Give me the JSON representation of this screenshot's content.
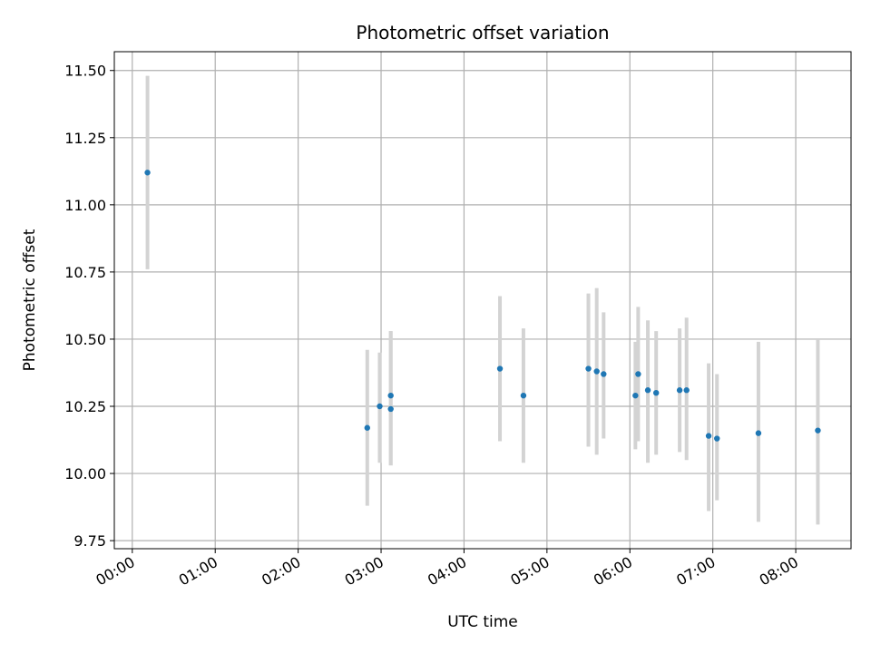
{
  "chart_data": {
    "type": "scatter",
    "title": "Photometric offset variation",
    "xlabel": "UTC time",
    "ylabel": "Photometric offset",
    "x_axis": "time",
    "xlim": [
      "-00:13",
      "08:40"
    ],
    "ylim": [
      9.72,
      11.57
    ],
    "grid": true,
    "legend": "none",
    "x_ticks": [
      "00:00",
      "01:00",
      "02:00",
      "03:00",
      "04:00",
      "05:00",
      "06:00",
      "07:00",
      "08:00"
    ],
    "y_ticks": [
      "9.75",
      "10.00",
      "10.25",
      "10.50",
      "10.75",
      "11.00",
      "11.25",
      "11.50"
    ],
    "colors": {
      "point": "#1f77b4",
      "errorbar": "#d3d3d3",
      "grid": "#b0b0b0"
    },
    "points": [
      {
        "x": "00:11",
        "y": 11.12,
        "err_low": 10.76,
        "err_high": 11.48
      },
      {
        "x": "02:50",
        "y": 10.17,
        "err_low": 9.88,
        "err_high": 10.46
      },
      {
        "x": "02:59",
        "y": 10.25,
        "err_low": 10.04,
        "err_high": 10.45
      },
      {
        "x": "03:07",
        "y": 10.24,
        "err_low": 10.03,
        "err_high": 10.53
      },
      {
        "x": "03:07",
        "y": 10.29,
        "err_low": 10.03,
        "err_high": 10.53
      },
      {
        "x": "04:26",
        "y": 10.39,
        "err_low": 10.12,
        "err_high": 10.66
      },
      {
        "x": "04:43",
        "y": 10.29,
        "err_low": 10.04,
        "err_high": 10.54
      },
      {
        "x": "05:30",
        "y": 10.39,
        "err_low": 10.1,
        "err_high": 10.67
      },
      {
        "x": "05:36",
        "y": 10.38,
        "err_low": 10.07,
        "err_high": 10.69
      },
      {
        "x": "05:41",
        "y": 10.37,
        "err_low": 10.13,
        "err_high": 10.6
      },
      {
        "x": "06:04",
        "y": 10.29,
        "err_low": 10.09,
        "err_high": 10.49
      },
      {
        "x": "06:06",
        "y": 10.37,
        "err_low": 10.12,
        "err_high": 10.62
      },
      {
        "x": "06:13",
        "y": 10.31,
        "err_low": 10.04,
        "err_high": 10.57
      },
      {
        "x": "06:19",
        "y": 10.3,
        "err_low": 10.07,
        "err_high": 10.53
      },
      {
        "x": "06:36",
        "y": 10.31,
        "err_low": 10.08,
        "err_high": 10.54
      },
      {
        "x": "06:41",
        "y": 10.31,
        "err_low": 10.05,
        "err_high": 10.58
      },
      {
        "x": "06:57",
        "y": 10.14,
        "err_low": 9.86,
        "err_high": 10.41
      },
      {
        "x": "07:03",
        "y": 10.13,
        "err_low": 9.9,
        "err_high": 10.37
      },
      {
        "x": "07:33",
        "y": 10.15,
        "err_low": 9.82,
        "err_high": 10.49
      },
      {
        "x": "08:16",
        "y": 10.16,
        "err_low": 9.81,
        "err_high": 10.5
      }
    ]
  }
}
